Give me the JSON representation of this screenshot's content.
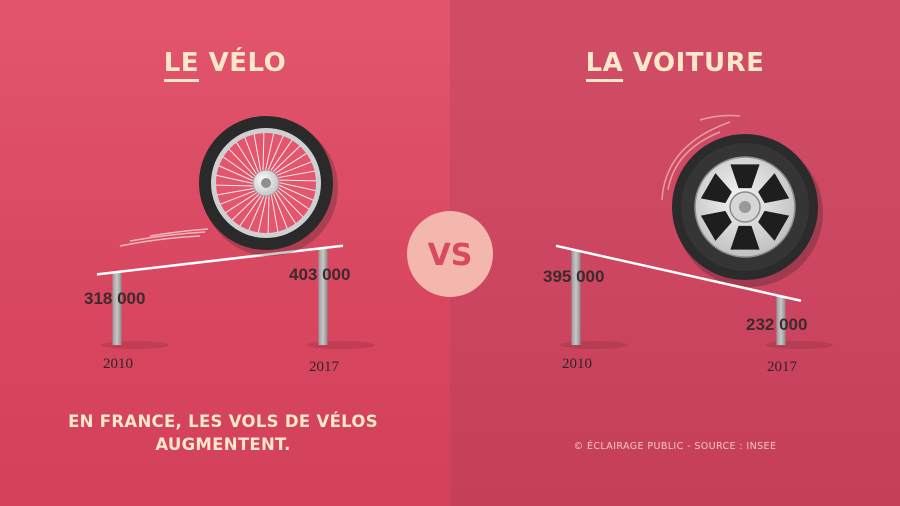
{
  "titles": {
    "left_prefix": "LE",
    "left_rest": " VÉLO",
    "right_prefix": "LA",
    "right_rest": " VOITURE"
  },
  "vs_label": "VS",
  "caption_line1": "EN FRANCE, LES VOLS DE VÉLOS",
  "caption_line2": "AUGMENTENT.",
  "credit": "© ÉCLAIRAGE PUBLIC - SOURCE : INSEE",
  "colors": {
    "left_background": "#dc4e66",
    "right_background": "#cb4661",
    "title_text": "#fbe7c9",
    "vs_circle": "#f4b7ad",
    "value_text": "#3d2a2e",
    "ramp_line": "#ffffff"
  },
  "icons": {
    "left": "bicycle-wheel-icon",
    "right": "car-wheel-icon"
  },
  "chart_data": [
    {
      "type": "line",
      "title": "LE VÉLO",
      "x": [
        "2010",
        "2017"
      ],
      "values": [
        318000,
        403000
      ],
      "labels": [
        "318 000",
        "403 000"
      ]
    },
    {
      "type": "line",
      "title": "LA VOITURE",
      "x": [
        "2010",
        "2017"
      ],
      "values": [
        395000,
        232000
      ],
      "labels": [
        "395 000",
        "232 000"
      ]
    }
  ]
}
